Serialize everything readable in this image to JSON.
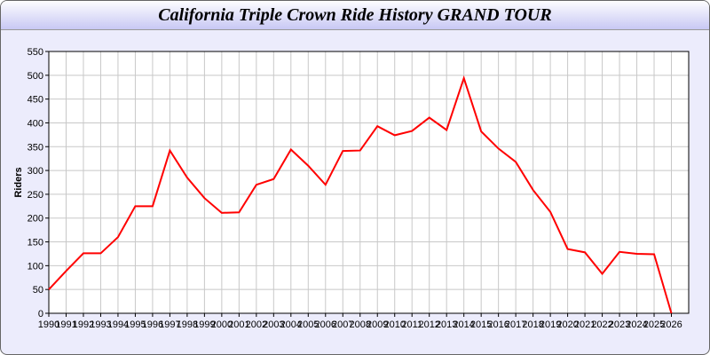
{
  "chart_data": {
    "type": "line",
    "title": "California Triple Crown Ride History GRAND TOUR",
    "xlabel": "",
    "ylabel": "Riders",
    "ylim": [
      0,
      550
    ],
    "yticks": [
      0,
      50,
      100,
      150,
      200,
      250,
      300,
      350,
      400,
      450,
      500,
      550
    ],
    "grid": true,
    "x": [
      1990,
      1991,
      1992,
      1993,
      1994,
      1995,
      1996,
      1997,
      1998,
      1999,
      2000,
      2001,
      2002,
      2003,
      2004,
      2005,
      2006,
      2007,
      2008,
      2009,
      2010,
      2011,
      2012,
      2013,
      2014,
      2015,
      2016,
      2017,
      2018,
      2019,
      2020,
      2021,
      2022,
      2023,
      2024,
      2025,
      2026
    ],
    "series": [
      {
        "values": [
          50,
          89,
          126,
          126,
          160,
          225,
          225,
          342,
          285,
          242,
          211,
          212,
          270,
          282,
          344,
          310,
          270,
          341,
          342,
          393,
          374,
          383,
          411,
          385,
          494,
          382,
          346,
          318,
          259,
          213,
          135,
          128,
          83,
          129,
          125,
          124,
          0
        ],
        "color": "#ff0000"
      }
    ]
  }
}
